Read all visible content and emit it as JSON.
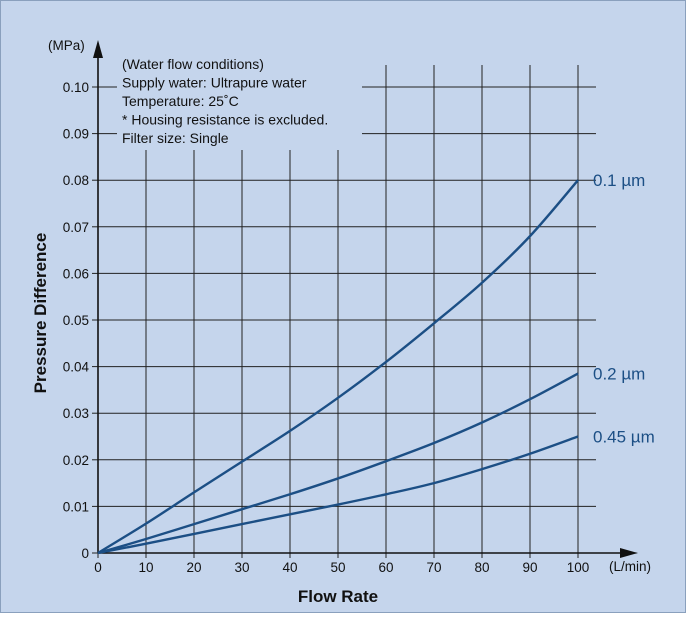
{
  "chart_data": {
    "type": "line",
    "xlabel": "Flow Rate",
    "ylabel": "Pressure Difference",
    "x_unit": "(L/min)",
    "y_unit": "(MPa)",
    "xlim": [
      0,
      100
    ],
    "ylim": [
      0,
      0.1
    ],
    "x_ticks": [
      "0",
      "10",
      "20",
      "30",
      "40",
      "50",
      "60",
      "70",
      "80",
      "90",
      "100"
    ],
    "y_ticks": [
      "0",
      "0.01",
      "0.02",
      "0.03",
      "0.04",
      "0.05",
      "0.06",
      "0.07",
      "0.08",
      "0.09",
      "0.10"
    ],
    "grid": true,
    "notes": [
      "(Water flow conditions)",
      "Supply water: Ultrapure water",
      "Temperature: 25˚C",
      "* Housing resistance is excluded.",
      "Filter size: Single"
    ],
    "x": [
      0,
      10,
      20,
      30,
      40,
      50,
      60,
      70,
      80,
      90,
      100
    ],
    "series": [
      {
        "name": "0.1 µm",
        "values": [
          0,
          0.0063,
          0.013,
          0.0196,
          0.0262,
          0.0333,
          0.041,
          0.0493,
          0.058,
          0.068,
          0.08
        ]
      },
      {
        "name": "0.2 µm",
        "values": [
          0,
          0.003,
          0.0062,
          0.0094,
          0.0126,
          0.016,
          0.0197,
          0.0236,
          0.028,
          0.033,
          0.0385
        ]
      },
      {
        "name": "0.45 µm",
        "values": [
          0,
          0.002,
          0.0041,
          0.0062,
          0.0083,
          0.0104,
          0.0126,
          0.015,
          0.018,
          0.0213,
          0.025
        ]
      }
    ],
    "colors": {
      "background": "#c5d5ec",
      "line": "#1c4f85",
      "grid": "#222222"
    }
  }
}
